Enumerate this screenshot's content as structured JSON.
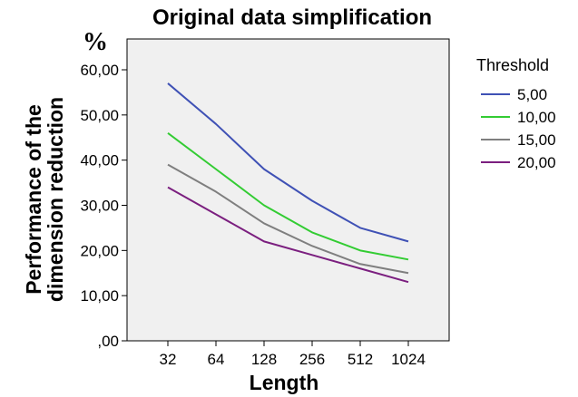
{
  "chart_data": {
    "type": "line",
    "title": "Original data simplification",
    "unit_label": "%",
    "xlabel": "Length",
    "ylabel": "Performance of the dimension reduction",
    "ylabel_lines": [
      "Performance of the",
      "dimension reduction"
    ],
    "categories": [
      "32",
      "64",
      "128",
      "256",
      "512",
      "1024"
    ],
    "ylim": [
      0,
      70
    ],
    "yticks": [
      0,
      10,
      20,
      30,
      40,
      50,
      60
    ],
    "ytick_labels": [
      ",00",
      "10,00",
      "20,00",
      "30,00",
      "40,00",
      "50,00",
      "60,00"
    ],
    "grid": false,
    "legend": {
      "title": "Threshold",
      "placement": "right"
    },
    "series": [
      {
        "name": "5,00",
        "color": "#3f51b5",
        "values": [
          57,
          48,
          38,
          31,
          25,
          22
        ]
      },
      {
        "name": "10,00",
        "color": "#33cc33",
        "values": [
          46,
          38,
          30,
          24,
          20,
          18
        ]
      },
      {
        "name": "15,00",
        "color": "#7f7f7f",
        "values": [
          39,
          33,
          26,
          21,
          17,
          15
        ]
      },
      {
        "name": "20,00",
        "color": "#7b1f7f",
        "values": [
          34,
          28,
          22,
          19,
          16,
          13
        ]
      }
    ]
  }
}
